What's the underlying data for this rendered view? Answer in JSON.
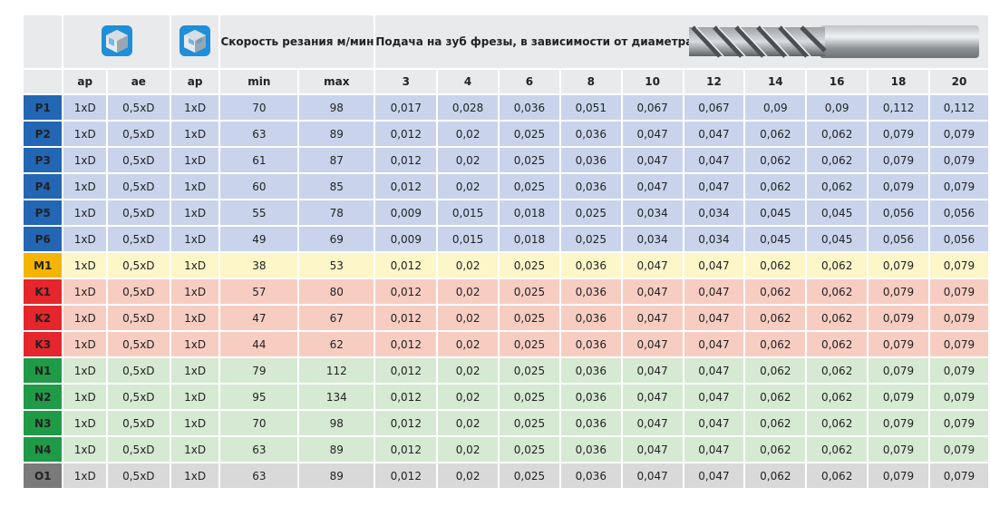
{
  "header": {
    "speed_label": "Скорость резания м/мин",
    "feed_label": "Подача на зуб фрезы, в зависимости от диаметра фрезы мм/зуб",
    "icon_1": "block-slot-icon",
    "icon_2": "block-pocket-icon",
    "tool_image": "end-mill-cutter-image",
    "sub_columns": [
      "ap",
      "ae",
      "ap",
      "min",
      "max",
      "3",
      "4",
      "6",
      "8",
      "10",
      "12",
      "14",
      "16",
      "18",
      "20"
    ]
  },
  "colors": {
    "header_bg": "#e9eaec",
    "P_label": "#2366b3",
    "P_row": "#c9d4ec",
    "M_label": "#f4b400",
    "M_row": "#fcf6c9",
    "K_label": "#e5262c",
    "K_row": "#f7cdc2",
    "N_label": "#1f9a47",
    "N_row": "#d6e9d3",
    "O_label": "#7a7a7a",
    "O_row": "#d9d9d9"
  },
  "rows": [
    {
      "mat": "P1",
      "group": "P",
      "ap": "1xD",
      "ae": "0,5xD",
      "ap2": "1xD",
      "min": "70",
      "max": "98",
      "f": [
        "0,017",
        "0,028",
        "0,036",
        "0,051",
        "0,067",
        "0,067",
        "0,09",
        "0,09",
        "0,112",
        "0,112"
      ]
    },
    {
      "mat": "P2",
      "group": "P",
      "ap": "1xD",
      "ae": "0,5xD",
      "ap2": "1xD",
      "min": "63",
      "max": "89",
      "f": [
        "0,012",
        "0,02",
        "0,025",
        "0,036",
        "0,047",
        "0,047",
        "0,062",
        "0,062",
        "0,079",
        "0,079"
      ]
    },
    {
      "mat": "P3",
      "group": "P",
      "ap": "1xD",
      "ae": "0,5xD",
      "ap2": "1xD",
      "min": "61",
      "max": "87",
      "f": [
        "0,012",
        "0,02",
        "0,025",
        "0,036",
        "0,047",
        "0,047",
        "0,062",
        "0,062",
        "0,079",
        "0,079"
      ]
    },
    {
      "mat": "P4",
      "group": "P",
      "ap": "1xD",
      "ae": "0,5xD",
      "ap2": "1xD",
      "min": "60",
      "max": "85",
      "f": [
        "0,012",
        "0,02",
        "0,025",
        "0,036",
        "0,047",
        "0,047",
        "0,062",
        "0,062",
        "0,079",
        "0,079"
      ]
    },
    {
      "mat": "P5",
      "group": "P",
      "ap": "1xD",
      "ae": "0,5xD",
      "ap2": "1xD",
      "min": "55",
      "max": "78",
      "f": [
        "0,009",
        "0,015",
        "0,018",
        "0,025",
        "0,034",
        "0,034",
        "0,045",
        "0,045",
        "0,056",
        "0,056"
      ]
    },
    {
      "mat": "P6",
      "group": "P",
      "ap": "1xD",
      "ae": "0,5xD",
      "ap2": "1xD",
      "min": "49",
      "max": "69",
      "f": [
        "0,009",
        "0,015",
        "0,018",
        "0,025",
        "0,034",
        "0,034",
        "0,045",
        "0,045",
        "0,056",
        "0,056"
      ]
    },
    {
      "mat": "M1",
      "group": "M",
      "ap": "1xD",
      "ae": "0,5xD",
      "ap2": "1xD",
      "min": "38",
      "max": "53",
      "f": [
        "0,012",
        "0,02",
        "0,025",
        "0,036",
        "0,047",
        "0,047",
        "0,062",
        "0,062",
        "0,079",
        "0,079"
      ]
    },
    {
      "mat": "K1",
      "group": "K",
      "ap": "1xD",
      "ae": "0,5xD",
      "ap2": "1xD",
      "min": "57",
      "max": "80",
      "f": [
        "0,012",
        "0,02",
        "0,025",
        "0,036",
        "0,047",
        "0,047",
        "0,062",
        "0,062",
        "0,079",
        "0,079"
      ]
    },
    {
      "mat": "K2",
      "group": "K",
      "ap": "1xD",
      "ae": "0,5xD",
      "ap2": "1xD",
      "min": "47",
      "max": "67",
      "f": [
        "0,012",
        "0,02",
        "0,025",
        "0,036",
        "0,047",
        "0,047",
        "0,062",
        "0,062",
        "0,079",
        "0,079"
      ]
    },
    {
      "mat": "K3",
      "group": "K",
      "ap": "1xD",
      "ae": "0,5xD",
      "ap2": "1xD",
      "min": "44",
      "max": "62",
      "f": [
        "0,012",
        "0,02",
        "0,025",
        "0,036",
        "0,047",
        "0,047",
        "0,062",
        "0,062",
        "0,079",
        "0,079"
      ]
    },
    {
      "mat": "N1",
      "group": "N",
      "ap": "1xD",
      "ae": "0,5xD",
      "ap2": "1xD",
      "min": "79",
      "max": "112",
      "f": [
        "0,012",
        "0,02",
        "0,025",
        "0,036",
        "0,047",
        "0,047",
        "0,062",
        "0,062",
        "0,079",
        "0,079"
      ]
    },
    {
      "mat": "N2",
      "group": "N",
      "ap": "1xD",
      "ae": "0,5xD",
      "ap2": "1xD",
      "min": "95",
      "max": "134",
      "f": [
        "0,012",
        "0,02",
        "0,025",
        "0,036",
        "0,047",
        "0,047",
        "0,062",
        "0,062",
        "0,079",
        "0,079"
      ]
    },
    {
      "mat": "N3",
      "group": "N",
      "ap": "1xD",
      "ae": "0,5xD",
      "ap2": "1xD",
      "min": "70",
      "max": "98",
      "f": [
        "0,012",
        "0,02",
        "0,025",
        "0,036",
        "0,047",
        "0,047",
        "0,062",
        "0,062",
        "0,079",
        "0,079"
      ]
    },
    {
      "mat": "N4",
      "group": "N",
      "ap": "1xD",
      "ae": "0,5xD",
      "ap2": "1xD",
      "min": "63",
      "max": "89",
      "f": [
        "0,012",
        "0,02",
        "0,025",
        "0,036",
        "0,047",
        "0,047",
        "0,062",
        "0,062",
        "0,079",
        "0,079"
      ]
    },
    {
      "mat": "O1",
      "group": "O",
      "ap": "1xD",
      "ae": "0,5xD",
      "ap2": "1xD",
      "min": "63",
      "max": "89",
      "f": [
        "0,012",
        "0,02",
        "0,025",
        "0,036",
        "0,047",
        "0,047",
        "0,062",
        "0,062",
        "0,079",
        "0,079"
      ]
    }
  ]
}
